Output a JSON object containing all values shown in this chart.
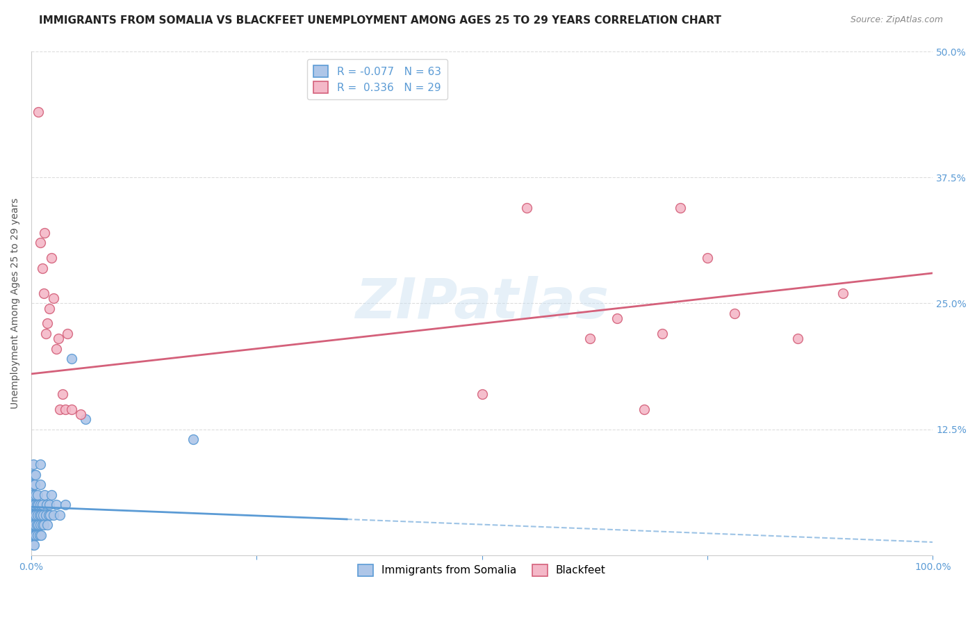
{
  "title": "IMMIGRANTS FROM SOMALIA VS BLACKFEET UNEMPLOYMENT AMONG AGES 25 TO 29 YEARS CORRELATION CHART",
  "source": "Source: ZipAtlas.com",
  "ylabel": "Unemployment Among Ages 25 to 29 years",
  "xlim": [
    0,
    1.0
  ],
  "ylim": [
    0,
    0.5
  ],
  "somalia_color": "#aec6e8",
  "somalia_edge": "#5b9bd5",
  "blackfeet_color": "#f4b8c8",
  "blackfeet_edge": "#d4607a",
  "somalia_R": -0.077,
  "somalia_N": 63,
  "blackfeet_R": 0.336,
  "blackfeet_N": 29,
  "watermark_text": "ZIPatlas",
  "legend_label_somalia": "Immigrants from Somalia",
  "legend_label_blackfeet": "Blackfeet",
  "somalia_scatter_x": [
    0.001,
    0.001,
    0.001,
    0.001,
    0.001,
    0.002,
    0.002,
    0.002,
    0.002,
    0.002,
    0.002,
    0.002,
    0.002,
    0.002,
    0.003,
    0.003,
    0.003,
    0.003,
    0.003,
    0.003,
    0.003,
    0.004,
    0.004,
    0.004,
    0.004,
    0.005,
    0.005,
    0.005,
    0.005,
    0.006,
    0.006,
    0.007,
    0.007,
    0.007,
    0.008,
    0.008,
    0.009,
    0.009,
    0.01,
    0.01,
    0.01,
    0.01,
    0.011,
    0.011,
    0.012,
    0.012,
    0.013,
    0.014,
    0.015,
    0.016,
    0.017,
    0.018,
    0.019,
    0.02,
    0.021,
    0.022,
    0.025,
    0.028,
    0.032,
    0.038,
    0.045,
    0.06,
    0.18
  ],
  "somalia_scatter_y": [
    0.02,
    0.03,
    0.04,
    0.05,
    0.06,
    0.01,
    0.02,
    0.03,
    0.04,
    0.05,
    0.06,
    0.07,
    0.08,
    0.09,
    0.01,
    0.02,
    0.03,
    0.04,
    0.05,
    0.07,
    0.08,
    0.02,
    0.03,
    0.05,
    0.07,
    0.02,
    0.04,
    0.06,
    0.08,
    0.03,
    0.05,
    0.02,
    0.04,
    0.06,
    0.03,
    0.05,
    0.02,
    0.04,
    0.03,
    0.05,
    0.07,
    0.09,
    0.02,
    0.04,
    0.03,
    0.05,
    0.04,
    0.03,
    0.06,
    0.04,
    0.05,
    0.03,
    0.04,
    0.05,
    0.04,
    0.06,
    0.04,
    0.05,
    0.04,
    0.05,
    0.195,
    0.135,
    0.115
  ],
  "blackfeet_scatter_x": [
    0.008,
    0.01,
    0.012,
    0.014,
    0.015,
    0.016,
    0.018,
    0.02,
    0.022,
    0.025,
    0.028,
    0.03,
    0.032,
    0.035,
    0.038,
    0.04,
    0.045,
    0.055,
    0.5,
    0.55,
    0.62,
    0.65,
    0.68,
    0.7,
    0.72,
    0.75,
    0.78,
    0.85,
    0.9
  ],
  "blackfeet_scatter_y": [
    0.44,
    0.31,
    0.285,
    0.26,
    0.32,
    0.22,
    0.23,
    0.245,
    0.295,
    0.255,
    0.205,
    0.215,
    0.145,
    0.16,
    0.145,
    0.22,
    0.145,
    0.14,
    0.16,
    0.345,
    0.215,
    0.235,
    0.145,
    0.22,
    0.345,
    0.295,
    0.24,
    0.215,
    0.26
  ],
  "title_fontsize": 11,
  "axis_fontsize": 10,
  "tick_fontsize": 10,
  "background_color": "#ffffff",
  "grid_color": "#dddddd",
  "somalia_line_solid_end": 0.35,
  "blackfeet_line_start": 0.0,
  "blackfeet_line_end": 1.0
}
